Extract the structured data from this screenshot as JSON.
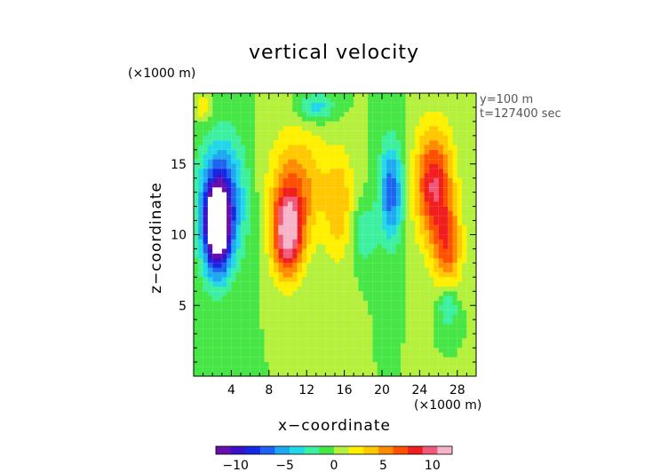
{
  "chart_data": {
    "type": "heatmap",
    "title": "vertical velocity",
    "xlabel": "x−coordinate",
    "ylabel": "z−coordinate",
    "x_unit_label": "(×1000 m)",
    "y_unit_label": "(×1000 m)",
    "annotations": [
      "y=100 m",
      "t=127400 sec"
    ],
    "xlim": [
      0,
      30
    ],
    "ylim": [
      0,
      20
    ],
    "x_ticks": [
      4,
      8,
      12,
      16,
      20,
      24,
      28
    ],
    "x_tick_labels": [
      "4",
      "8",
      "12",
      "16",
      "20",
      "24",
      "28"
    ],
    "y_ticks": [
      5,
      10,
      15
    ],
    "y_tick_labels": [
      "5",
      "10",
      "15"
    ],
    "colorbar": {
      "range": [
        -12,
        12
      ],
      "ticks": [
        -10,
        -5,
        0,
        5,
        10
      ],
      "tick_labels": [
        "−10",
        "−5",
        "0",
        "5",
        "10"
      ],
      "colors": [
        "#6a0dad",
        "#3a10c8",
        "#1428e6",
        "#1e64f0",
        "#1fa8f2",
        "#22d8e8",
        "#3cf0a0",
        "#46e646",
        "#b4f03c",
        "#fff000",
        "#ffc800",
        "#ff8c00",
        "#ff5000",
        "#f01e1e",
        "#f05a7a",
        "#f5b4c8"
      ]
    },
    "field_features": [
      {
        "kind": "min",
        "x": 2.5,
        "z": 10.5,
        "value": -13,
        "sx": 1.4,
        "sz": 3.2
      },
      {
        "kind": "min",
        "x": 3.0,
        "z": 12.5,
        "value": -7,
        "sx": 2.5,
        "sz": 4.5
      },
      {
        "kind": "max",
        "x": 10.0,
        "z": 10.0,
        "value": 11,
        "sx": 1.6,
        "sz": 3.0
      },
      {
        "kind": "max",
        "x": 11.0,
        "z": 13.5,
        "value": 5,
        "sx": 3.0,
        "sz": 4.0
      },
      {
        "kind": "max",
        "x": 15.5,
        "z": 12.0,
        "value": 4,
        "sx": 1.6,
        "sz": 4.0
      },
      {
        "kind": "min",
        "x": 21.0,
        "z": 13.0,
        "value": -7,
        "sx": 1.3,
        "sz": 3.5
      },
      {
        "kind": "min",
        "x": 18.0,
        "z": 10.0,
        "value": -3,
        "sx": 1.5,
        "sz": 2.0
      },
      {
        "kind": "max",
        "x": 25.5,
        "z": 13.5,
        "value": 9,
        "sx": 2.0,
        "sz": 4.0
      },
      {
        "kind": "max",
        "x": 27.0,
        "z": 9.0,
        "value": 6,
        "sx": 1.5,
        "sz": 3.0
      },
      {
        "kind": "min",
        "x": 13.0,
        "z": 19.0,
        "value": -4,
        "sx": 2.0,
        "sz": 1.0
      },
      {
        "kind": "min",
        "x": 27.0,
        "z": 5.0,
        "value": -4,
        "sx": 1.0,
        "sz": 1.5
      },
      {
        "kind": "max",
        "x": 1.0,
        "z": 19.0,
        "value": 3,
        "sx": 1.0,
        "sz": 1.0
      }
    ]
  }
}
